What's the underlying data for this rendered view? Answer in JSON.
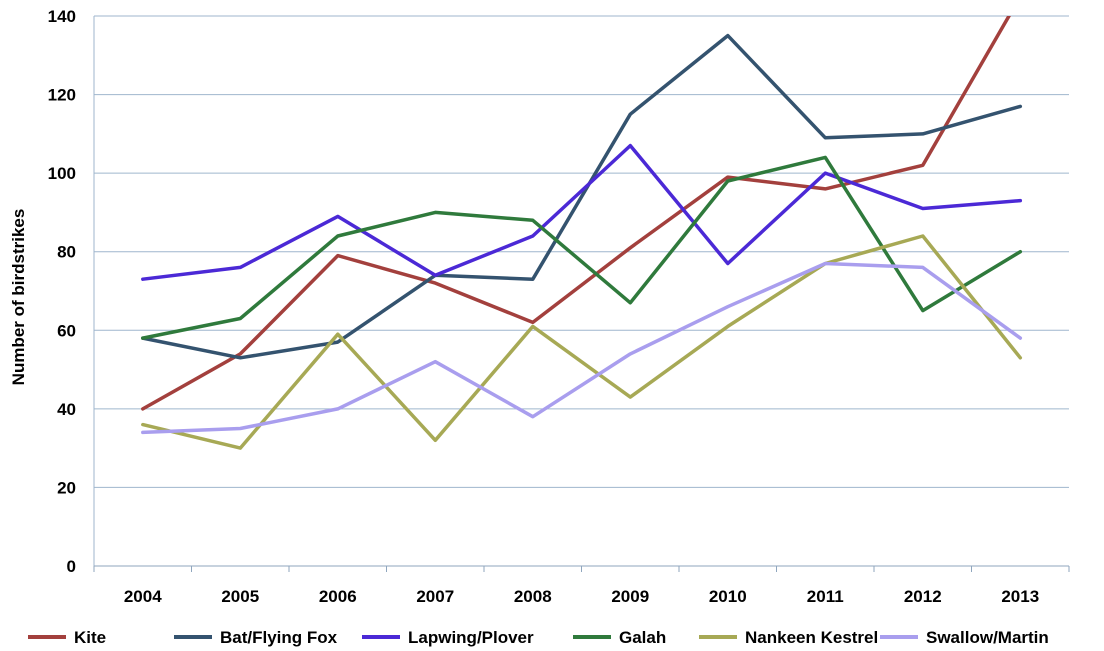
{
  "chart_data": {
    "type": "line",
    "title": "",
    "xlabel": "",
    "ylabel": "Number of birdstrikes",
    "categories": [
      "2004",
      "2005",
      "2006",
      "2007",
      "2008",
      "2009",
      "2010",
      "2011",
      "2012",
      "2013"
    ],
    "ylim": [
      0,
      140
    ],
    "yticks": [
      0,
      20,
      40,
      60,
      80,
      100,
      120,
      140
    ],
    "grid": true,
    "legend_position": "bottom",
    "series": [
      {
        "name": "Kite",
        "color": "#A3403D",
        "values": [
          40,
          54,
          79,
          72,
          62,
          81,
          99,
          96,
          102,
          145
        ]
      },
      {
        "name": "Bat/Flying Fox",
        "color": "#34536F",
        "values": [
          58,
          53,
          57,
          74,
          73,
          115,
          135,
          109,
          110,
          117
        ]
      },
      {
        "name": "Lapwing/Plover",
        "color": "#4B29D6",
        "values": [
          73,
          76,
          89,
          74,
          84,
          107,
          77,
          100,
          91,
          93
        ]
      },
      {
        "name": "Galah",
        "color": "#2F7A3C",
        "values": [
          58,
          63,
          84,
          90,
          88,
          67,
          98,
          104,
          65,
          80
        ]
      },
      {
        "name": "Nankeen Kestrel",
        "color": "#A7A955",
        "values": [
          36,
          30,
          59,
          32,
          61,
          43,
          61,
          77,
          84,
          53
        ]
      },
      {
        "name": "Swallow/Martin",
        "color": "#A99EEE",
        "values": [
          34,
          35,
          40,
          52,
          38,
          54,
          66,
          77,
          76,
          58
        ]
      }
    ]
  }
}
